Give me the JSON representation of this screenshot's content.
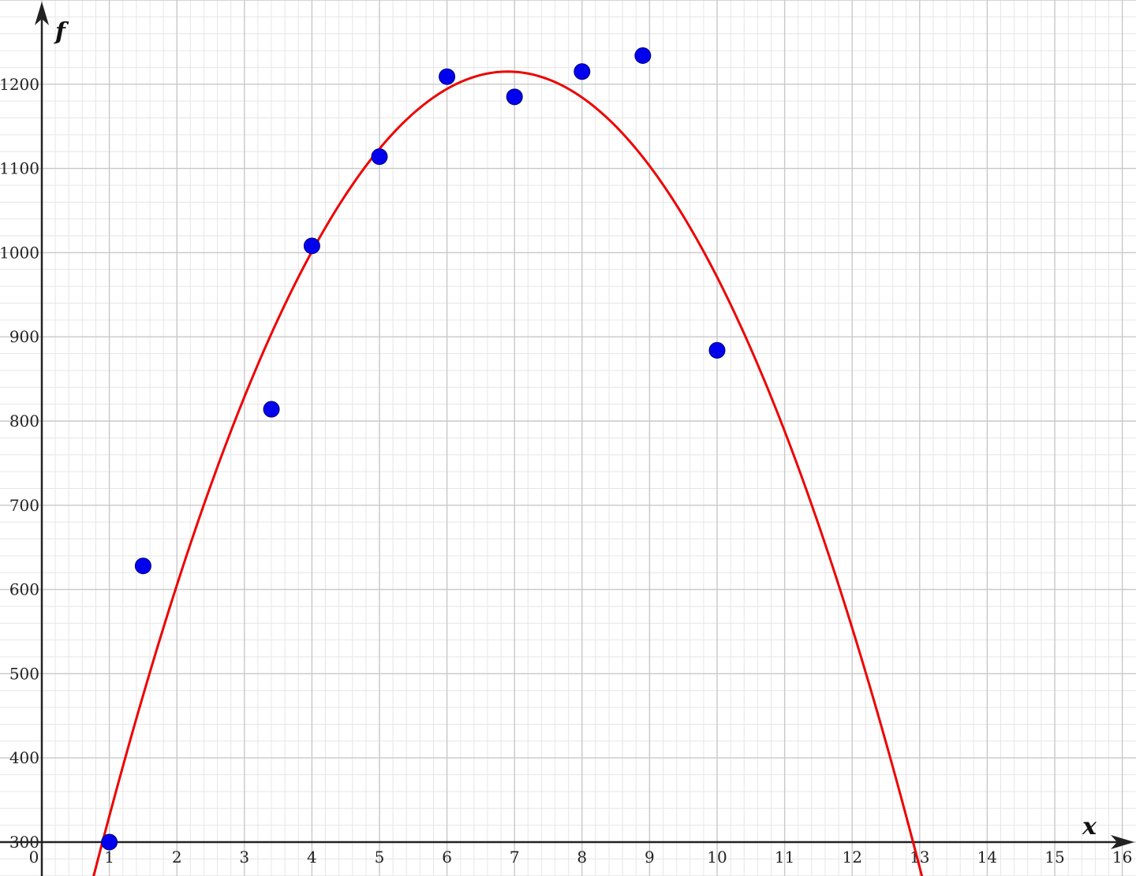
{
  "chart_data": {
    "type": "scatter",
    "title": "",
    "xlabel": "x",
    "ylabel": "f",
    "xlim": [
      0,
      16.2
    ],
    "ylim": [
      300,
      1300
    ],
    "x_ticks": [
      "0",
      "1",
      "2",
      "3",
      "4",
      "5",
      "6",
      "7",
      "8",
      "9",
      "10",
      "11",
      "12",
      "13",
      "14",
      "15",
      "16"
    ],
    "y_ticks": [
      "300",
      "400",
      "500",
      "600",
      "700",
      "800",
      "900",
      "1000",
      "1100",
      "1200"
    ],
    "grid": true,
    "minor_grid": true,
    "points": [
      {
        "x": 1.0,
        "y": 300
      },
      {
        "x": 1.5,
        "y": 628
      },
      {
        "x": 3.4,
        "y": 814
      },
      {
        "x": 4.0,
        "y": 1008
      },
      {
        "x": 5.0,
        "y": 1114
      },
      {
        "x": 6.0,
        "y": 1209
      },
      {
        "x": 7.0,
        "y": 1185
      },
      {
        "x": 8.0,
        "y": 1215
      },
      {
        "x": 8.9,
        "y": 1234
      },
      {
        "x": 10.0,
        "y": 884
      }
    ],
    "fit_curve": {
      "type": "quadratic",
      "vertex_x": 6.9,
      "vertex_y": 1215,
      "a": -25.4,
      "x_range": [
        0.7,
        13.1
      ]
    },
    "colors": {
      "points": "#0000ee",
      "curve": "#ee0000",
      "grid_major": "#c8c8c8",
      "grid_minor": "#e6e6e6",
      "axes": "#222222"
    }
  }
}
